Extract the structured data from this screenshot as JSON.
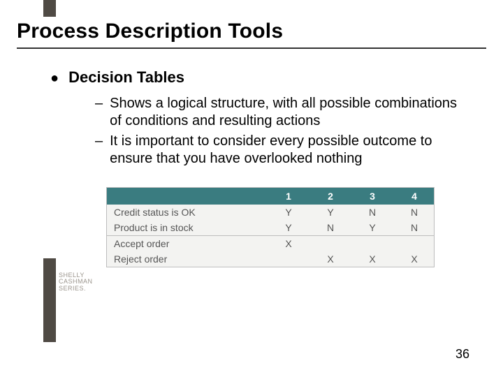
{
  "title": "Process Description Tools",
  "bullet": {
    "label": "Decision Tables"
  },
  "subitems": [
    "Shows a logical structure, with all possible combinations of conditions and resulting actions",
    "It is important to consider every possible outcome to ensure that you have overlooked nothing"
  ],
  "table": {
    "header_bg": "#3a7c80",
    "header_fg": "#ffffff",
    "body_bg": "#f3f3f1",
    "border_color": "#bdbdbd",
    "text_color": "#555555",
    "columns": [
      "1",
      "2",
      "3",
      "4"
    ],
    "conditions": [
      {
        "label": "Credit status is OK",
        "values": [
          "Y",
          "Y",
          "N",
          "N"
        ]
      },
      {
        "label": "Product is in stock",
        "values": [
          "Y",
          "N",
          "Y",
          "N"
        ]
      }
    ],
    "actions": [
      {
        "label": "Accept order",
        "values": [
          "X",
          "",
          "",
          ""
        ]
      },
      {
        "label": "Reject order",
        "values": [
          "",
          "X",
          "X",
          "X"
        ]
      }
    ]
  },
  "logo": {
    "line1": "SHELLY",
    "line2": "CASHMAN",
    "line3": "SERIES."
  },
  "page_number": "36"
}
